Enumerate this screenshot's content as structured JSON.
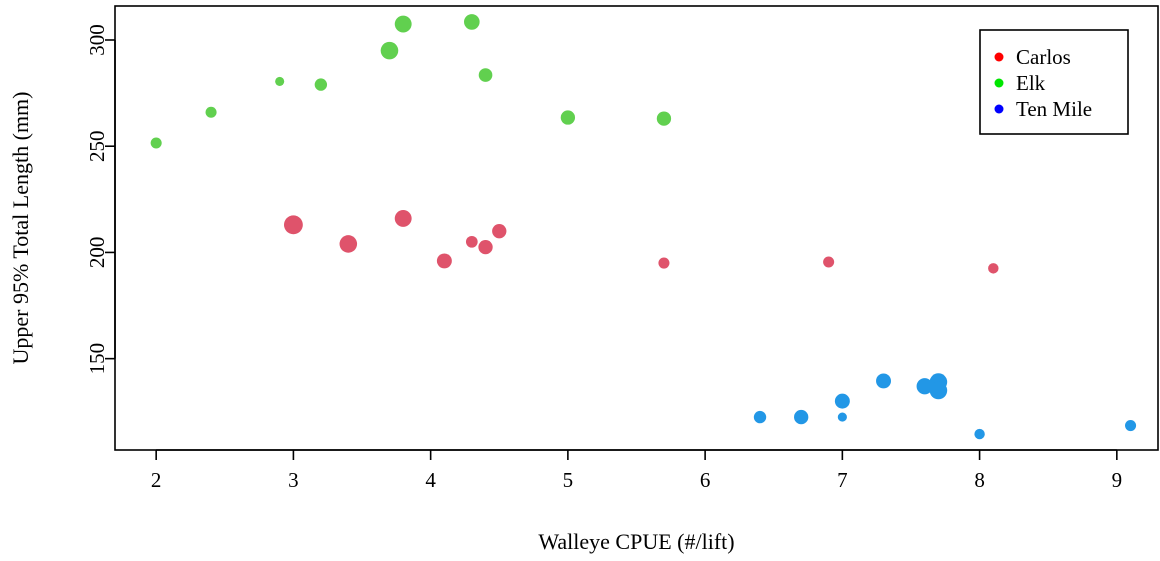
{
  "chart_data": {
    "type": "scatter",
    "title": "",
    "xlabel": "Walleye CPUE (#/lift)",
    "ylabel": "Upper 95% Total Length (mm)",
    "xlim": [
      1.7,
      9.3
    ],
    "ylim": [
      107,
      316
    ],
    "xticks": [
      2,
      3,
      4,
      5,
      6,
      7,
      8,
      9
    ],
    "yticks": [
      150,
      200,
      250,
      300
    ],
    "grid": false,
    "legend": {
      "position": "top-right",
      "entries": [
        {
          "name": "Carlos",
          "color": "#FF0000"
        },
        {
          "name": "Elk",
          "color": "#00E600"
        },
        {
          "name": "Ten Mile",
          "color": "#0000FF"
        }
      ]
    },
    "series": [
      {
        "name": "Carlos",
        "color": "#DF536B",
        "points": [
          {
            "x": 3.0,
            "y": 213,
            "size": 1.45
          },
          {
            "x": 3.4,
            "y": 204,
            "size": 1.35
          },
          {
            "x": 3.8,
            "y": 216,
            "size": 1.3
          },
          {
            "x": 4.1,
            "y": 196,
            "size": 1.15
          },
          {
            "x": 4.3,
            "y": 205,
            "size": 0.9
          },
          {
            "x": 4.4,
            "y": 202.5,
            "size": 1.1
          },
          {
            "x": 4.5,
            "y": 210,
            "size": 1.1
          },
          {
            "x": 5.7,
            "y": 195,
            "size": 0.85
          },
          {
            "x": 6.9,
            "y": 195.5,
            "size": 0.85
          },
          {
            "x": 8.1,
            "y": 192.5,
            "size": 0.8
          }
        ]
      },
      {
        "name": "Elk",
        "color": "#61D04F",
        "points": [
          {
            "x": 2.0,
            "y": 251.5,
            "size": 0.85
          },
          {
            "x": 2.4,
            "y": 266,
            "size": 0.85
          },
          {
            "x": 2.9,
            "y": 280.5,
            "size": 0.7
          },
          {
            "x": 3.2,
            "y": 279,
            "size": 0.95
          },
          {
            "x": 3.7,
            "y": 295,
            "size": 1.35
          },
          {
            "x": 3.8,
            "y": 307.5,
            "size": 1.3
          },
          {
            "x": 4.3,
            "y": 308.5,
            "size": 1.2
          },
          {
            "x": 4.4,
            "y": 283.5,
            "size": 1.05
          },
          {
            "x": 5.0,
            "y": 263.5,
            "size": 1.1
          },
          {
            "x": 5.7,
            "y": 263,
            "size": 1.1
          }
        ]
      },
      {
        "name": "Ten Mile",
        "color": "#2297E6",
        "points": [
          {
            "x": 6.4,
            "y": 122.5,
            "size": 0.95
          },
          {
            "x": 6.7,
            "y": 122.5,
            "size": 1.1
          },
          {
            "x": 7.0,
            "y": 130,
            "size": 1.15
          },
          {
            "x": 7.0,
            "y": 122.5,
            "size": 0.7
          },
          {
            "x": 7.3,
            "y": 139.5,
            "size": 1.15
          },
          {
            "x": 7.6,
            "y": 137,
            "size": 1.25
          },
          {
            "x": 7.7,
            "y": 139,
            "size": 1.35
          },
          {
            "x": 7.7,
            "y": 135,
            "size": 1.35
          },
          {
            "x": 8.0,
            "y": 114.5,
            "size": 0.8
          },
          {
            "x": 9.1,
            "y": 118.5,
            "size": 0.85
          }
        ]
      }
    ]
  }
}
